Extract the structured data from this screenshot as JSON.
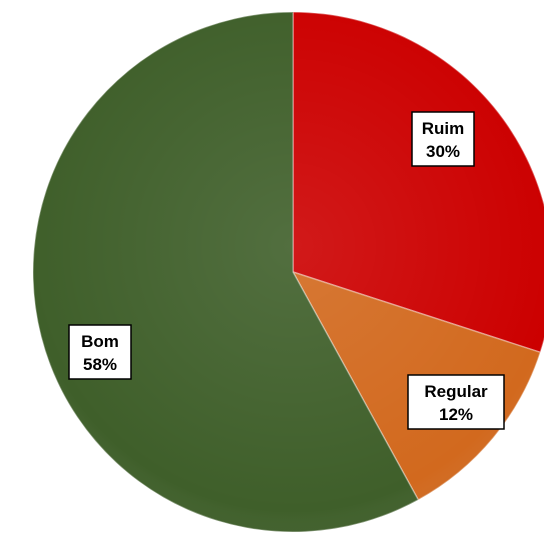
{
  "chart_data": {
    "type": "pie",
    "title": "",
    "slices": [
      {
        "label": "Ruim",
        "value": 30,
        "percent_label": "30%",
        "color": "#cc0000"
      },
      {
        "label": "Regular",
        "value": 12,
        "percent_label": "12%",
        "color": "#d2691e"
      },
      {
        "label": "Bom",
        "value": 58,
        "percent_label": "58%",
        "color": "#3f5f2a"
      }
    ],
    "start_angle": "12 o'clock",
    "direction": "clockwise",
    "data_labels": "category name and percentage in boxed labels"
  }
}
